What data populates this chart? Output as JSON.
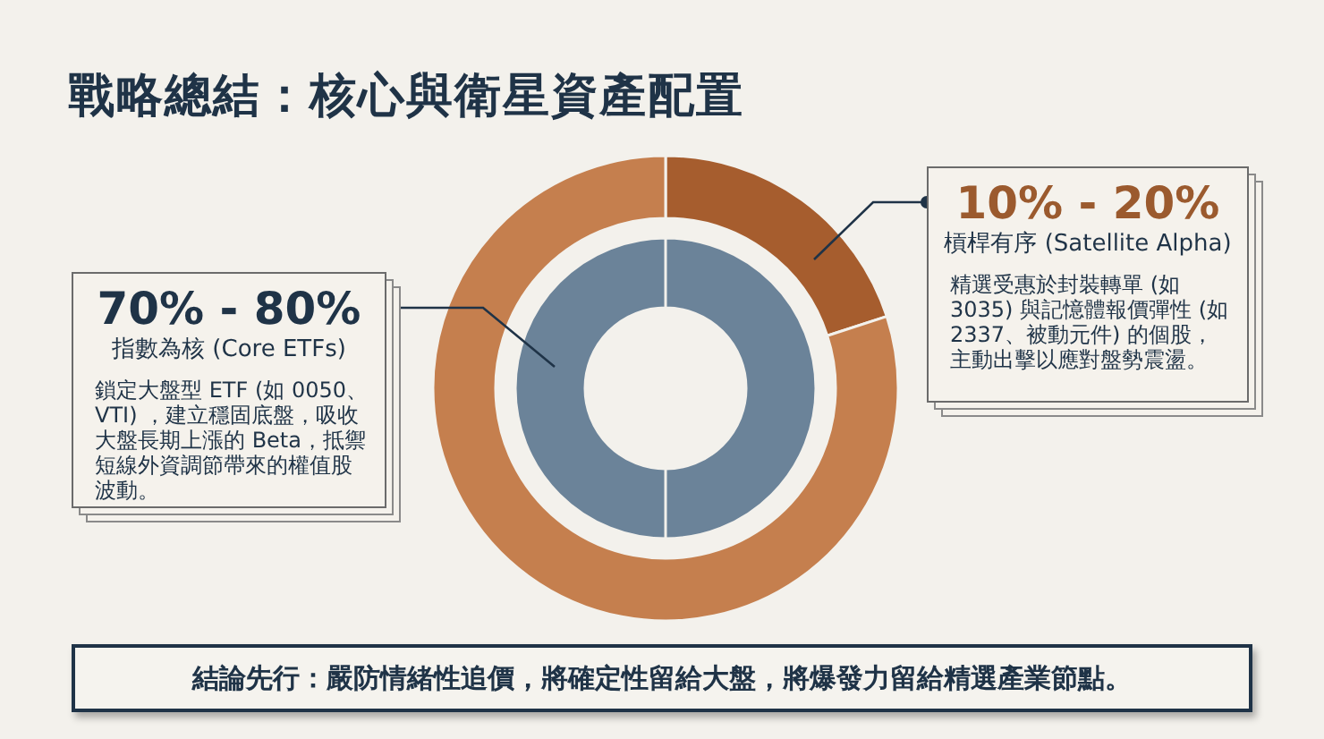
{
  "chart_data": {
    "type": "donut",
    "title": "戰略總結：核心與衛星資產配置",
    "series": [
      {
        "values": [
          100
        ],
        "colors": [
          "#6b8399"
        ]
      },
      {
        "values": [
          20,
          80
        ],
        "colors": [
          "#a65d2e",
          "#c57f4e"
        ]
      }
    ],
    "annotations": [
      "70% - 80%",
      "指數為核 (Core ETFs)",
      "鎖定大盤型 ETF (如 0050、VTI) ，建立穩固底盤，吸收大盤長期上漲的 Beta，抵禦短線外資調節帶來的權值股波動。",
      "10% - 20%",
      "槓桿有序 (Satellite Alpha)",
      "精選受惠於封裝轉單 (如 3035) 與記憶體報價彈性 (如 2337、被動元件) 的個股，主動出擊以應對盤勢震盪。",
      "結論先行：嚴防情緒性追價，將確定性留給大盤，將爆發力留給精選產業節點。"
    ]
  }
}
